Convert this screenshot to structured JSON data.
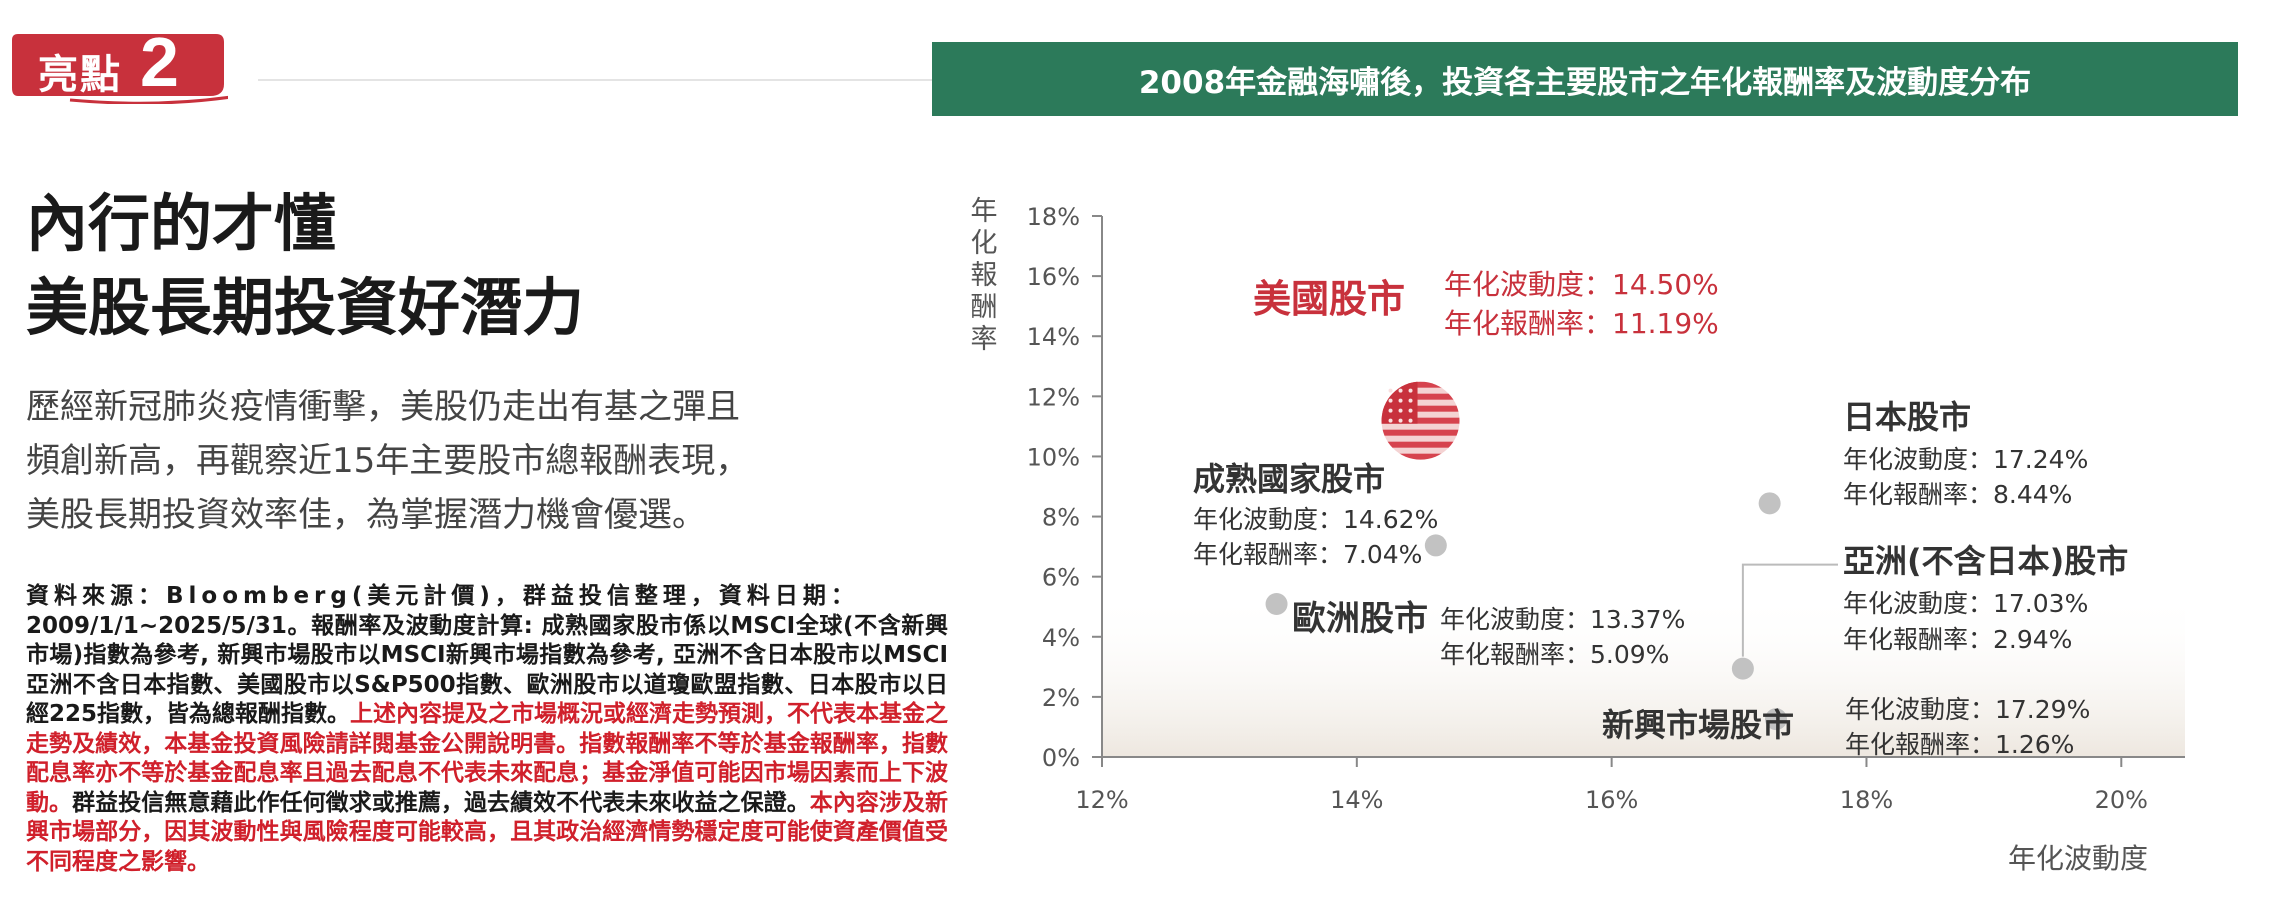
{
  "badge": {
    "label": "亮點",
    "number": "2"
  },
  "banner": {
    "title": "2008年金融海嘯後，投資各主要股市之年化報酬率及波動度分布"
  },
  "headline": {
    "line1": "內行的才懂",
    "line2": "美股長期投資好潛力"
  },
  "intro": {
    "line1": "歷經新冠肺炎疫情衝擊，美股仍走出有基之彈且",
    "line2": "頻創新高，再觀察近15年主要股市總報酬表現，",
    "line3": "美股長期投資效率佳，為掌握潛力機會優選。"
  },
  "source": {
    "label": "資料來源：Bloomberg(美元計價)，群益投信整理，資料日期：",
    "black1": "2009/1/1~2025/5/31。報酬率及波動度計算: 成熟國家股市係以MSCI全球(不含新興市場)指數為參考, 新興市場股市以MSCI新興市場指數為參考, 亞洲不含日本股市以MSCI亞洲不含日本指數、美國股市以S&P500指數、歐洲股市以道瓊歐盟指數、日本股市以日經225指數，皆為總報酬指數。",
    "red1": "上述內容提及之市場概況或經濟走勢預測，不代表本基金之走勢及績效，本基金投資風險請詳閱基金公開說明書。指數報酬率不等於基金報酬率，指數配息率亦不等於基金配息率且過去配息不代表未來配息；基金淨值可能因市場因素而上下波動。",
    "black2": "群益投信無意藉此作任何徵求或推薦，過去績效不代表未來收益之保證。",
    "red2": "本內容涉及新興市場部分，因其波動性與風險程度可能較高，且其政治經濟情勢穩定度可能使資產價值受不同程度之影響。"
  },
  "colors": {
    "accent_red": "#c8313c",
    "banner_green": "#2c7a5a",
    "point_gray": "#c2c2c2"
  },
  "chart_data": {
    "type": "scatter",
    "title": "2008年金融海嘯後，投資各主要股市之年化報酬率及波動度分布",
    "xlabel": "年化波動度",
    "ylabel": "年化報酬率",
    "xlim": [
      12,
      20.5
    ],
    "ylim": [
      0,
      18
    ],
    "xticks": [
      "12%",
      "14%",
      "16%",
      "18%",
      "20%"
    ],
    "yticks": [
      "0%",
      "2%",
      "4%",
      "6%",
      "8%",
      "10%",
      "12%",
      "14%",
      "16%",
      "18%"
    ],
    "vol_prefix": "年化波動度：",
    "ret_prefix": "年化報酬率：",
    "points": [
      {
        "name": "美國股市",
        "volatility": 14.5,
        "return": 11.19,
        "vol_text": "14.50%",
        "ret_text": "11.19%",
        "icon": "us-flag-icon"
      },
      {
        "name": "成熟國家股市",
        "volatility": 14.62,
        "return": 7.04,
        "vol_text": "14.62%",
        "ret_text": "7.04%"
      },
      {
        "name": "歐洲股市",
        "volatility": 13.37,
        "return": 5.09,
        "vol_text": "13.37%",
        "ret_text": "5.09%"
      },
      {
        "name": "日本股市",
        "volatility": 17.24,
        "return": 8.44,
        "vol_text": "17.24%",
        "ret_text": "8.44%"
      },
      {
        "name": "亞洲(不含日本)股市",
        "volatility": 17.03,
        "return": 2.94,
        "vol_text": "17.03%",
        "ret_text": "2.94%"
      },
      {
        "name": "新興市場股市",
        "volatility": 17.29,
        "return": 1.26,
        "vol_text": "17.29%",
        "ret_text": "1.26%"
      }
    ]
  }
}
